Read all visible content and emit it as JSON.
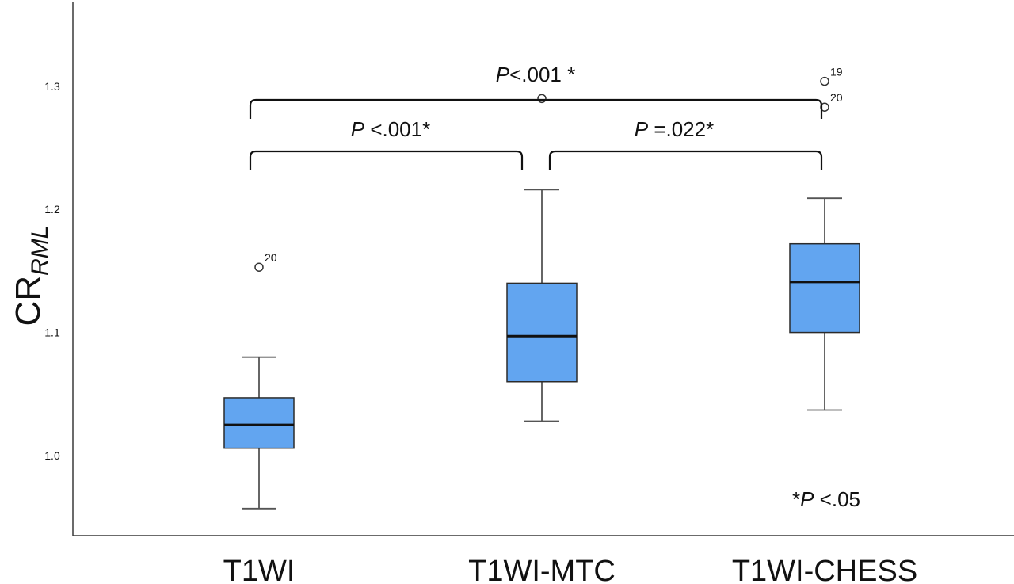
{
  "chart_data": {
    "type": "box",
    "ylabel": "CR",
    "ylabel_subscript": "RML",
    "yticks": [
      1.0,
      1.1,
      1.2,
      1.3
    ],
    "ylim": [
      0.935,
      1.37
    ],
    "categories": [
      "T1WI",
      "T1WI-MTC",
      "T1WI-CHESS"
    ],
    "boxes": [
      {
        "category": "T1WI",
        "whisker_low": 0.957,
        "q1": 1.006,
        "median": 1.025,
        "q3": 1.047,
        "whisker_high": 1.08,
        "outliers": [
          {
            "value": 1.153,
            "label": "20"
          }
        ]
      },
      {
        "category": "T1WI-MTC",
        "whisker_low": 1.028,
        "q1": 1.06,
        "median": 1.097,
        "q3": 1.14,
        "whisker_high": 1.216,
        "outliers": [
          {
            "value": 1.29,
            "label": ""
          }
        ]
      },
      {
        "category": "T1WI-CHESS",
        "whisker_low": 1.037,
        "q1": 1.1,
        "median": 1.141,
        "q3": 1.172,
        "whisker_high": 1.209,
        "outliers": [
          {
            "value": 1.304,
            "label": "19"
          },
          {
            "value": 1.283,
            "label": "20"
          }
        ]
      }
    ],
    "comparisons": [
      {
        "from": 0,
        "to": 2,
        "label_p": "P",
        "label_rest": "<.001 *"
      },
      {
        "from": 0,
        "to": 1,
        "label_p": "P",
        "label_rest": " <.001*"
      },
      {
        "from": 1,
        "to": 2,
        "label_p": "P",
        "label_rest": " =.022*"
      }
    ],
    "footnote": {
      "prefix": "*",
      "p": "P",
      "rest": " <.05"
    },
    "box_color": "#62a5f0",
    "grid": false
  }
}
